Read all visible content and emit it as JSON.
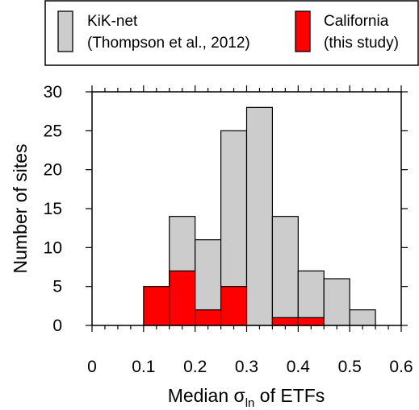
{
  "chart_data": {
    "type": "bar",
    "subtype": "overlaid-histogram",
    "title": "",
    "xlabel": {
      "prefix": "Median σ",
      "subscript": "ln",
      "suffix": " of ETFs"
    },
    "ylabel": "Number of sites",
    "xlim": [
      0,
      0.6
    ],
    "ylim": [
      0,
      30
    ],
    "xticks": [
      0,
      0.1,
      0.2,
      0.3,
      0.4,
      0.5,
      0.6
    ],
    "xtick_labels": [
      "0",
      "0.1",
      "0.2",
      "0.3",
      "0.4",
      "0.5",
      "0.6"
    ],
    "yticks": [
      0,
      5,
      10,
      15,
      20,
      25,
      30
    ],
    "ytick_labels": [
      "0",
      "5",
      "10",
      "15",
      "20",
      "25",
      "30"
    ],
    "minor_xtick_step": 0.025,
    "bin_width": 0.05,
    "grid": false,
    "legend_position": "top",
    "series": [
      {
        "name_lines": [
          "KiK-net",
          "(Thompson et al., 2012)"
        ],
        "color": "#cccccc",
        "bins": [
          {
            "x0": 0.15,
            "x1": 0.2,
            "value": 14
          },
          {
            "x0": 0.2,
            "x1": 0.25,
            "value": 11
          },
          {
            "x0": 0.25,
            "x1": 0.3,
            "value": 25
          },
          {
            "x0": 0.3,
            "x1": 0.35,
            "value": 28
          },
          {
            "x0": 0.35,
            "x1": 0.4,
            "value": 14
          },
          {
            "x0": 0.4,
            "x1": 0.45,
            "value": 7
          },
          {
            "x0": 0.45,
            "x1": 0.5,
            "value": 6
          },
          {
            "x0": 0.5,
            "x1": 0.55,
            "value": 2
          }
        ]
      },
      {
        "name_lines": [
          "California",
          "(this study)"
        ],
        "color": "#ff0000",
        "bins": [
          {
            "x0": 0.1,
            "x1": 0.15,
            "value": 5
          },
          {
            "x0": 0.15,
            "x1": 0.2,
            "value": 7
          },
          {
            "x0": 0.2,
            "x1": 0.25,
            "value": 2
          },
          {
            "x0": 0.25,
            "x1": 0.3,
            "value": 5
          },
          {
            "x0": 0.35,
            "x1": 0.4,
            "value": 1
          },
          {
            "x0": 0.4,
            "x1": 0.45,
            "value": 1
          }
        ]
      }
    ]
  }
}
